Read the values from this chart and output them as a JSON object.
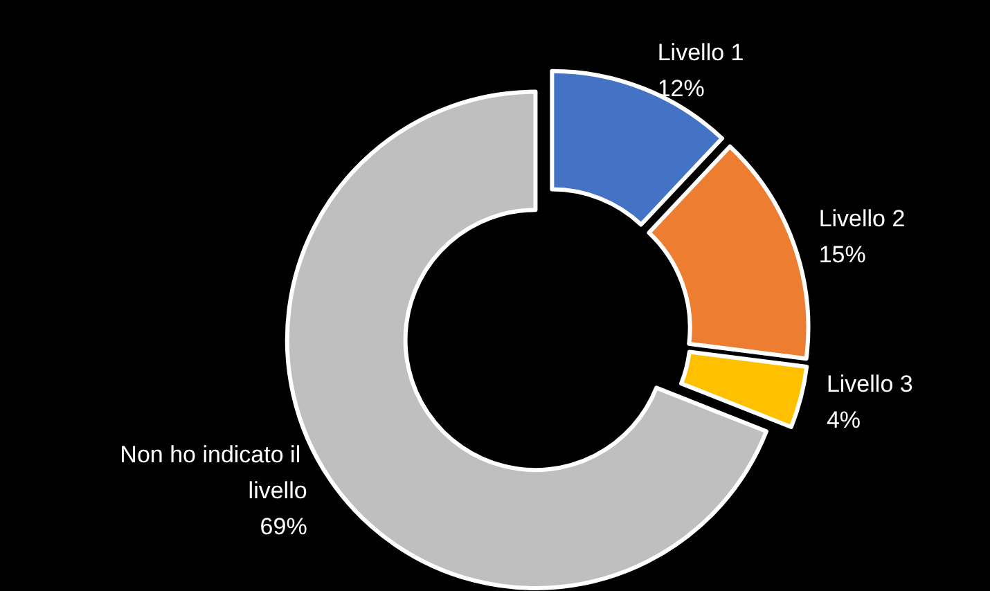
{
  "chart_data": {
    "type": "donut",
    "categories": [
      "Livello 1",
      "Livello 2",
      "Livello 3",
      "Non ho indicato il livello"
    ],
    "values": [
      12,
      15,
      4,
      69
    ],
    "value_labels": [
      "12%",
      "15%",
      "4%",
      "69%"
    ],
    "colors": [
      "#4472c4",
      "#ed7d31",
      "#ffc000",
      "#bfbfbf"
    ],
    "legend": false
  }
}
